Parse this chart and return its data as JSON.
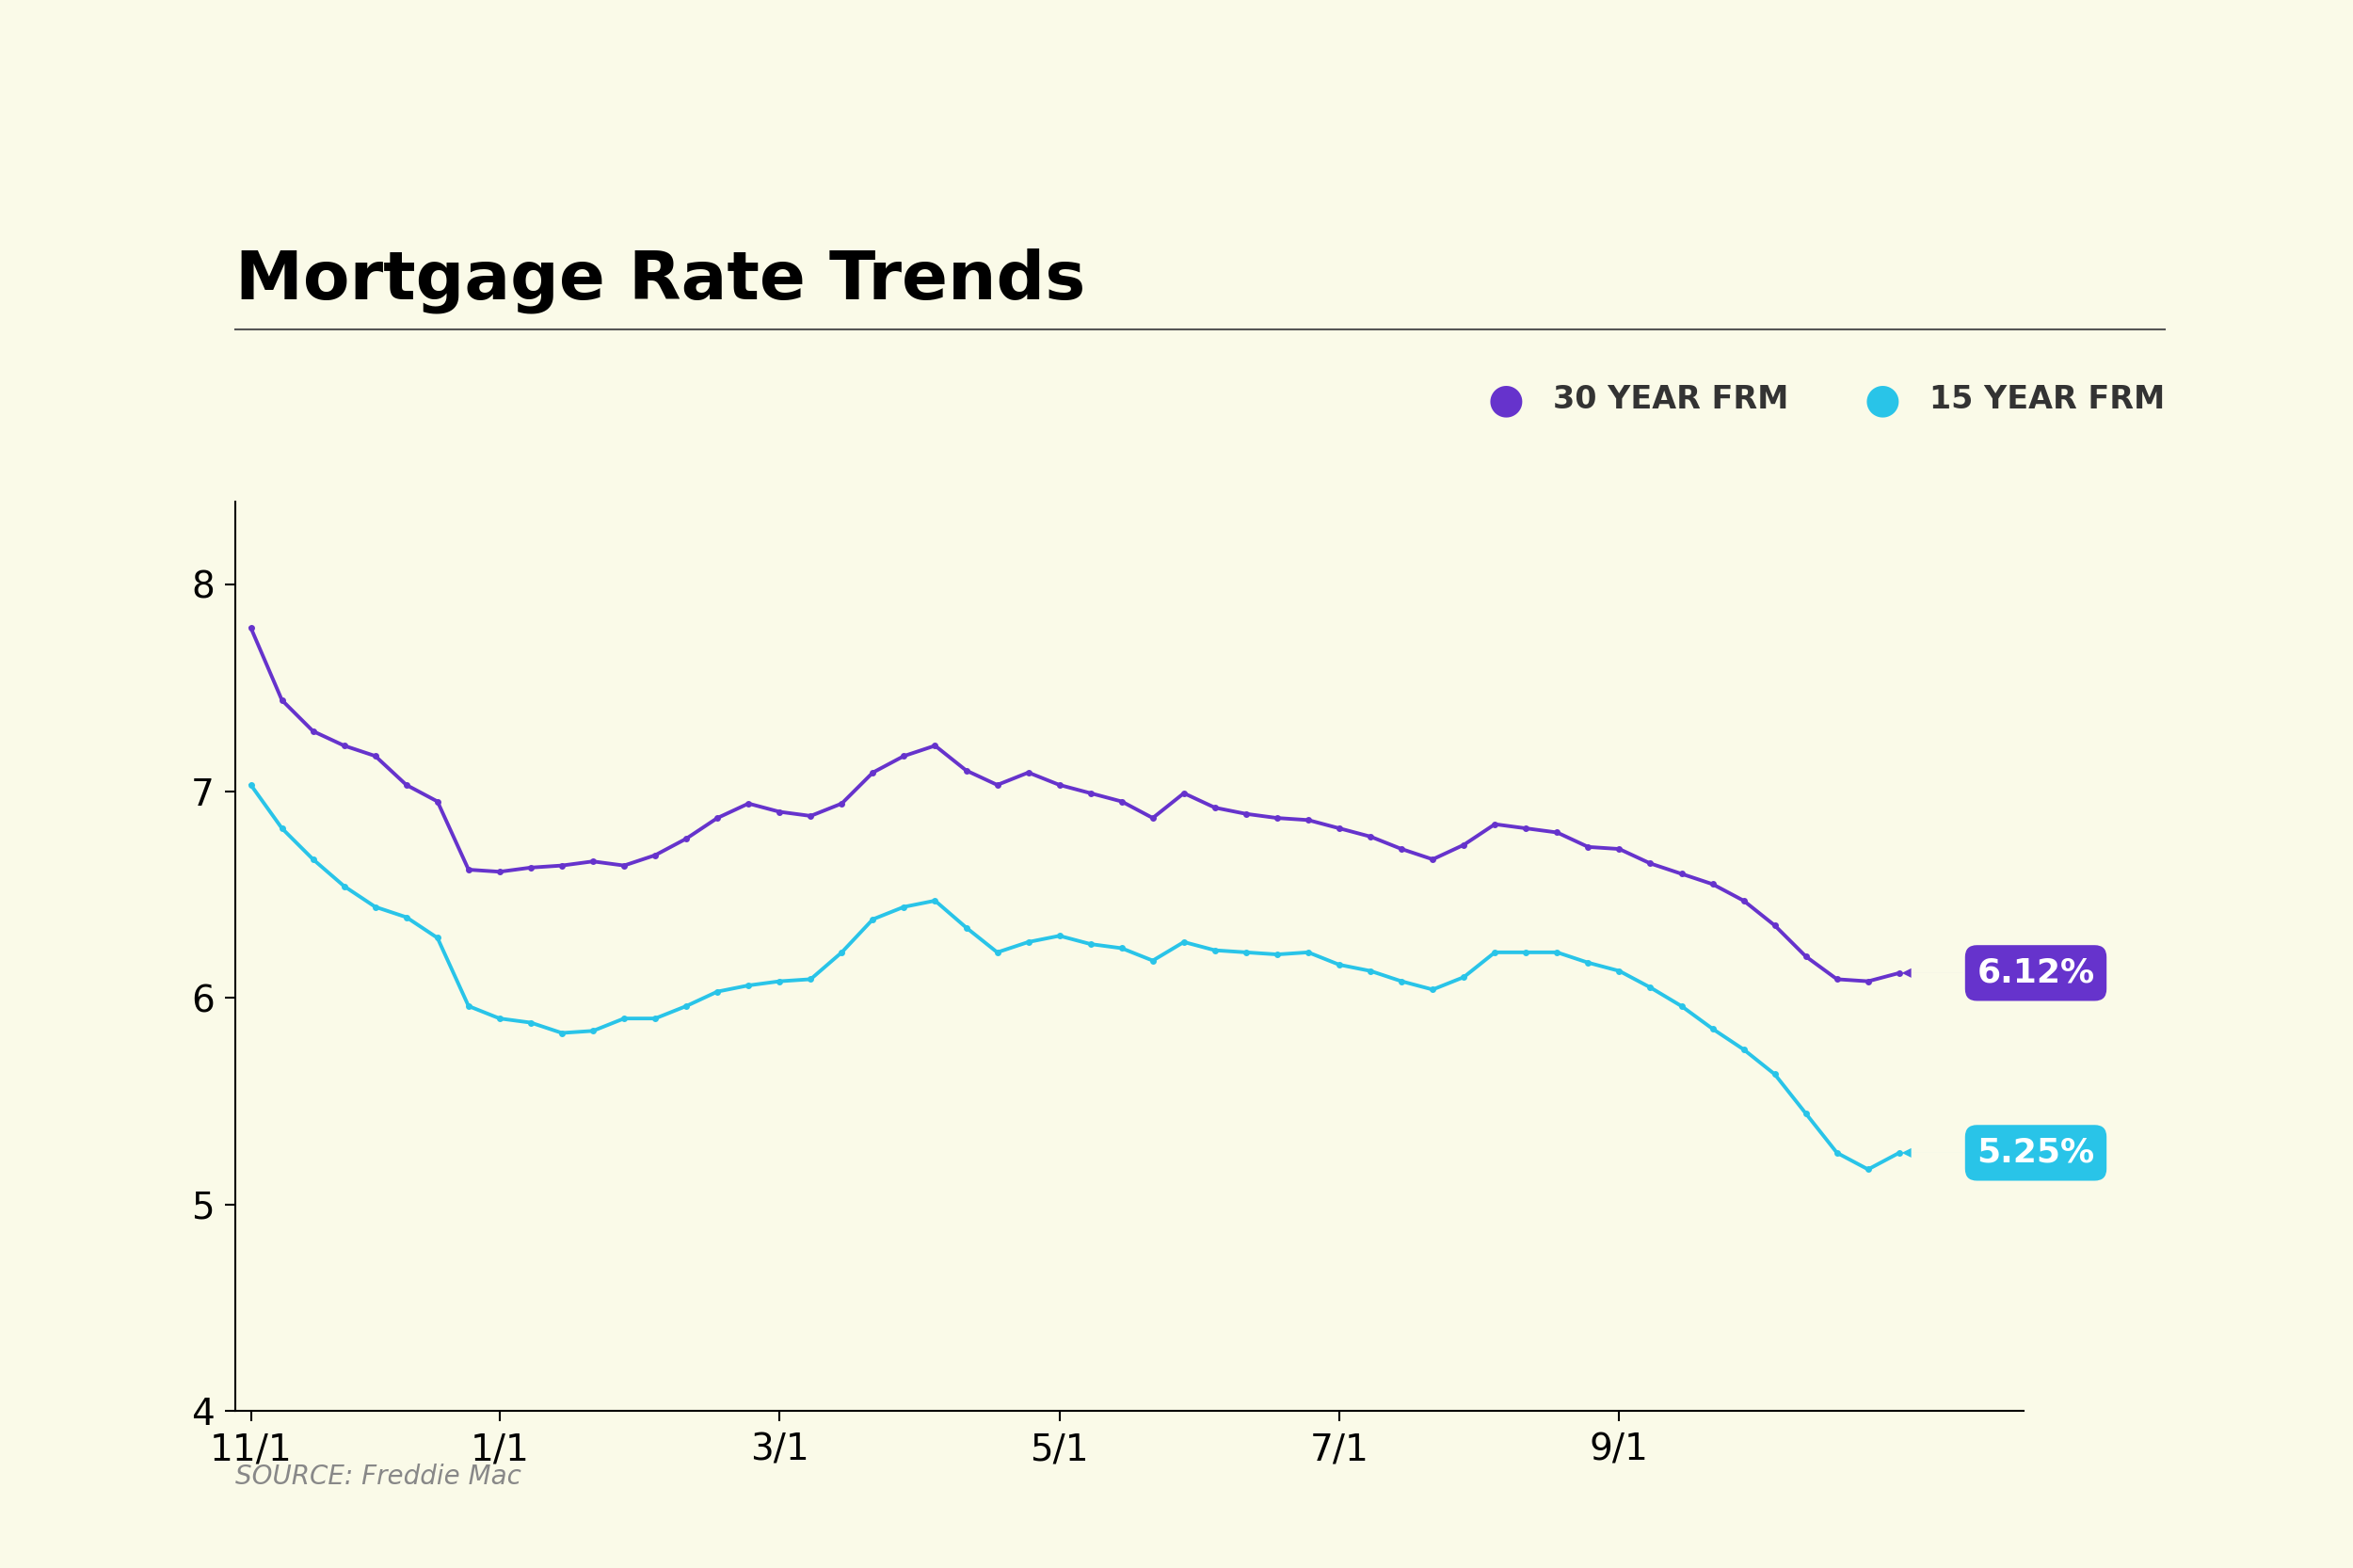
{
  "title": "Mortgage Rate Trends",
  "background_color": "#fafae8",
  "source_text": "SOURCE: Freddie Mac",
  "ylim": [
    4,
    8.4
  ],
  "yticks": [
    4,
    5,
    6,
    7,
    8
  ],
  "xlabel_ticks": [
    "11/1",
    "1/1",
    "3/1",
    "5/1",
    "7/1",
    "9/1"
  ],
  "legend_30yr": "30 YEAR FRM",
  "legend_15yr": "15 YEAR FRM",
  "color_30yr": "#6633cc",
  "color_15yr": "#29c4e8",
  "label_30yr_value": "6.12%",
  "label_15yr_value": "5.25%",
  "label_30yr_bg": "#6633cc",
  "label_15yr_bg": "#29c4e8",
  "data_30yr": [
    7.79,
    7.44,
    7.29,
    7.22,
    7.17,
    7.03,
    6.95,
    6.62,
    6.61,
    6.63,
    6.64,
    6.66,
    6.64,
    6.69,
    6.77,
    6.87,
    6.94,
    6.9,
    6.88,
    6.94,
    7.09,
    7.17,
    7.22,
    7.1,
    7.03,
    7.09,
    7.03,
    6.99,
    6.95,
    6.87,
    6.99,
    6.92,
    6.89,
    6.87,
    6.86,
    6.82,
    6.78,
    6.72,
    6.67,
    6.74,
    6.84,
    6.82,
    6.8,
    6.73,
    6.72,
    6.65,
    6.6,
    6.55,
    6.47,
    6.35,
    6.2,
    6.09,
    6.08,
    6.12
  ],
  "data_15yr": [
    7.03,
    6.82,
    6.67,
    6.54,
    6.44,
    6.39,
    6.29,
    5.96,
    5.9,
    5.88,
    5.83,
    5.84,
    5.9,
    5.9,
    5.96,
    6.03,
    6.06,
    6.08,
    6.09,
    6.22,
    6.38,
    6.44,
    6.47,
    6.34,
    6.22,
    6.27,
    6.3,
    6.26,
    6.24,
    6.18,
    6.27,
    6.23,
    6.22,
    6.21,
    6.22,
    6.16,
    6.13,
    6.08,
    6.04,
    6.1,
    6.22,
    6.22,
    6.22,
    6.17,
    6.13,
    6.05,
    5.96,
    5.85,
    5.75,
    5.63,
    5.44,
    5.25,
    5.17,
    5.25
  ],
  "n_data": 54,
  "tick_indices": [
    0,
    8,
    17,
    26,
    35,
    44
  ]
}
